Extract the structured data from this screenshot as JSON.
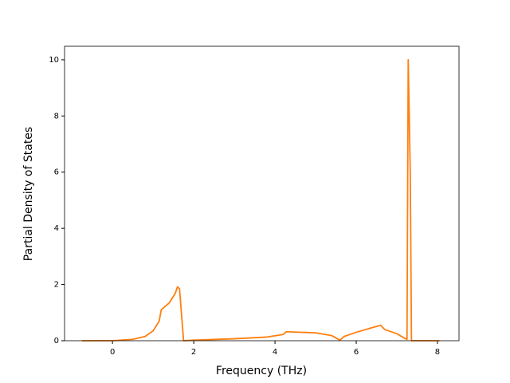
{
  "chart_data": {
    "type": "line",
    "x_label": "Frequency (THz)",
    "y_label": "Partial Density of States",
    "x": [
      -0.75,
      0,
      0.5,
      0.8,
      1.0,
      1.15,
      1.2,
      1.4,
      1.55,
      1.6,
      1.65,
      1.75,
      2.0,
      3.0,
      3.8,
      4.2,
      4.28,
      5.0,
      5.4,
      5.6,
      5.7,
      6.0,
      6.4,
      6.6,
      6.7,
      7.0,
      7.2,
      7.25,
      7.28,
      7.33,
      7.36,
      8.05
    ],
    "values": [
      0,
      0,
      0.05,
      0.15,
      0.35,
      0.7,
      1.1,
      1.35,
      1.7,
      1.92,
      1.85,
      0,
      0.02,
      0.07,
      0.13,
      0.22,
      0.32,
      0.28,
      0.18,
      0.02,
      0.15,
      0.3,
      0.47,
      0.55,
      0.4,
      0.25,
      0.08,
      0.05,
      10.0,
      6.0,
      0,
      0
    ],
    "color": "#ff7f0e",
    "xlim": [
      -1.18,
      8.53
    ],
    "xticks": [
      0,
      2,
      4,
      6,
      8
    ],
    "ylim": [
      0,
      10.48
    ],
    "yticks": [
      0,
      2,
      4,
      6,
      8,
      10
    ]
  }
}
